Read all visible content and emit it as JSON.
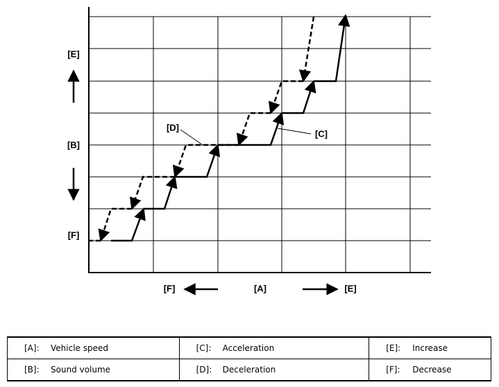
{
  "diagram": {
    "y_axis_labels": [
      "[E]",
      "[B]",
      "[F]"
    ],
    "x_axis_labels": [
      "[F]",
      "[A]",
      "[E]"
    ],
    "annotations": {
      "deceleration": "[D]",
      "acceleration": "[C]"
    }
  },
  "legend": {
    "rows": [
      [
        [
          "[A]:",
          "Vehicle speed"
        ],
        [
          "[C]:",
          "Acceleration"
        ],
        [
          "[E]:",
          "Increase"
        ]
      ],
      [
        [
          "[B]:",
          "Sound volume"
        ],
        [
          "[D]:",
          "Deceleration"
        ],
        [
          "[F]:",
          "Decrease"
        ]
      ]
    ]
  }
}
